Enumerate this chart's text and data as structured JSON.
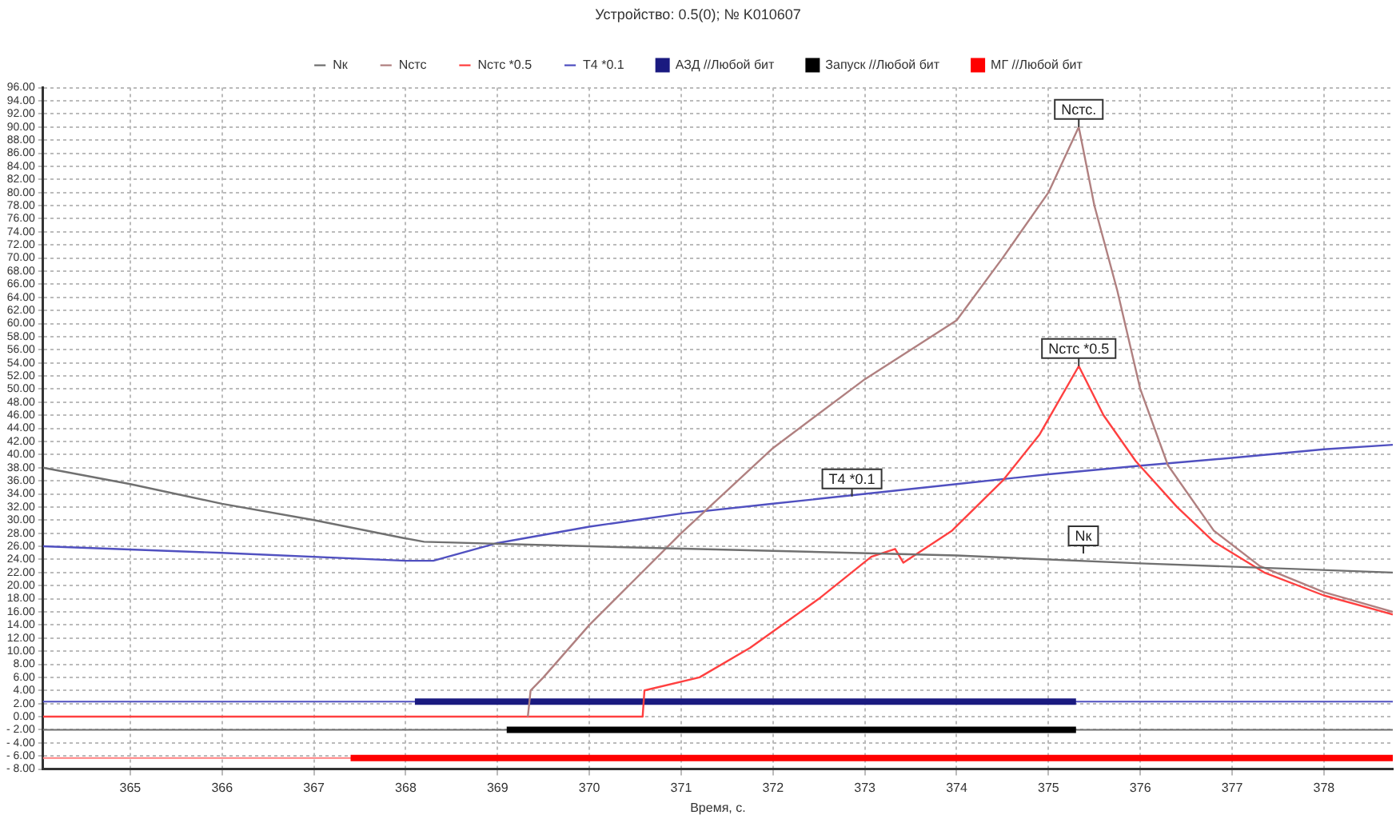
{
  "chart_data": {
    "type": "line",
    "title": "Устройство: 0.5(0); № K010607",
    "xlabel": "Время, с.",
    "xlim": [
      364.05,
      378.75
    ],
    "ylim": [
      -8,
      96
    ],
    "xticks": [
      365,
      366,
      367,
      368,
      369,
      370,
      371,
      372,
      373,
      374,
      375,
      376,
      377,
      378
    ],
    "yticks": [
      {
        "value": -8,
        "label": "- 8.00"
      },
      {
        "value": -6,
        "label": "- 6.00"
      },
      {
        "value": -4,
        "label": "- 4.00"
      },
      {
        "value": -2,
        "label": "- 2.00"
      },
      {
        "value": 0,
        "label": "0.00"
      },
      {
        "value": 2,
        "label": "2.00"
      },
      {
        "value": 4,
        "label": "4.00"
      },
      {
        "value": 6,
        "label": "6.00"
      },
      {
        "value": 8,
        "label": "8.00"
      },
      {
        "value": 10,
        "label": "10.00"
      },
      {
        "value": 12,
        "label": "12.00"
      },
      {
        "value": 14,
        "label": "14.00"
      },
      {
        "value": 16,
        "label": "16.00"
      },
      {
        "value": 18,
        "label": "18.00"
      },
      {
        "value": 20,
        "label": "20.00"
      },
      {
        "value": 22,
        "label": "22.00"
      },
      {
        "value": 24,
        "label": "24.00"
      },
      {
        "value": 26,
        "label": "26.00"
      },
      {
        "value": 28,
        "label": "28.00"
      },
      {
        "value": 30,
        "label": "30.00"
      },
      {
        "value": 32,
        "label": "32.00"
      },
      {
        "value": 34,
        "label": "34.00"
      },
      {
        "value": 36,
        "label": "36.00"
      },
      {
        "value": 38,
        "label": "38.00"
      },
      {
        "value": 40,
        "label": "40.00"
      },
      {
        "value": 42,
        "label": "42.00"
      },
      {
        "value": 44,
        "label": "44.00"
      },
      {
        "value": 46,
        "label": "46.00"
      },
      {
        "value": 48,
        "label": "48.00"
      },
      {
        "value": 50,
        "label": "50.00"
      },
      {
        "value": 52,
        "label": "52.00"
      },
      {
        "value": 54,
        "label": "54.00"
      },
      {
        "value": 56,
        "label": "56.00"
      },
      {
        "value": 58,
        "label": "58.00"
      },
      {
        "value": 60,
        "label": "60.00"
      },
      {
        "value": 62,
        "label": "62.00"
      },
      {
        "value": 64,
        "label": "64.00"
      },
      {
        "value": 66,
        "label": "66.00"
      },
      {
        "value": 68,
        "label": "68.00"
      },
      {
        "value": 70,
        "label": "70.00"
      },
      {
        "value": 72,
        "label": "72.00"
      },
      {
        "value": 74,
        "label": "74.00"
      },
      {
        "value": 76,
        "label": "76.00"
      },
      {
        "value": 78,
        "label": "78.00"
      },
      {
        "value": 80,
        "label": "80.00"
      },
      {
        "value": 82,
        "label": "82.00"
      },
      {
        "value": 84,
        "label": "84.00"
      },
      {
        "value": 86,
        "label": "86.00"
      },
      {
        "value": 88,
        "label": "88.00"
      },
      {
        "value": 90,
        "label": "90.00"
      },
      {
        "value": 92,
        "label": "92.00"
      },
      {
        "value": 94,
        "label": "94.00"
      },
      {
        "value": 96,
        "label": "96.00"
      }
    ],
    "grid": true,
    "legend": "top",
    "marker": "none",
    "line_style": "solid",
    "series": [
      {
        "name": "Nк",
        "color": "#707070",
        "x": [
          364.05,
          365,
          366,
          367,
          368,
          368.2,
          370,
          372,
          374,
          376,
          378.75
        ],
        "values": [
          38,
          35.5,
          32.5,
          30,
          27.2,
          26.7,
          26,
          25.3,
          24.6,
          23.4,
          22
        ]
      },
      {
        "name": "Nстс",
        "color": "#b08080",
        "x": [
          369.33,
          369.36,
          369.5,
          370,
          370.5,
          371,
          371.5,
          372,
          373,
          374,
          374.5,
          375,
          375.33,
          375.5,
          375.75,
          376,
          376.3,
          376.8,
          377.3,
          378,
          378.75
        ],
        "values": [
          0,
          4,
          6,
          14,
          21,
          28,
          34.5,
          41,
          51.5,
          60.5,
          70,
          80,
          90,
          78,
          65,
          50,
          38.4,
          28.4,
          23,
          19,
          16
        ]
      },
      {
        "name": "Nстс *0.5",
        "color": "#ff4040",
        "x": [
          364.05,
          370.58,
          370.6,
          371.2,
          371.75,
          372.5,
          373.07,
          373.33,
          373.42,
          373.95,
          374.5,
          374.9,
          375.33,
          375.6,
          375.95,
          376.4,
          376.8,
          377.35,
          378,
          378.75
        ],
        "values": [
          0,
          0,
          4,
          6,
          10.5,
          18,
          24.4,
          25.6,
          23.5,
          28.4,
          36,
          43,
          53.5,
          46,
          39,
          32,
          26.7,
          22,
          18.5,
          15.6
        ]
      },
      {
        "name": "T4 *0.1",
        "color": "#5050c0",
        "x": [
          364.05,
          366,
          368,
          368.3,
          369,
          370,
          371,
          372,
          373,
          374,
          375,
          376,
          377,
          378,
          378.75
        ],
        "values": [
          26,
          25,
          23.8,
          23.8,
          26.5,
          29,
          31,
          32.5,
          34,
          35.5,
          37,
          38.3,
          39.5,
          40.8,
          41.5
        ]
      },
      {
        "name": "АЗД //Любой бит",
        "type": "step",
        "color": "#1a1a80",
        "x": [
          368.1,
          375.3
        ],
        "values": [
          2.3,
          2.3
        ]
      },
      {
        "name": "Запуск //Любой бит",
        "type": "step",
        "color": "#000000",
        "x": [
          369.1,
          375.3
        ],
        "values": [
          -2,
          -2
        ]
      },
      {
        "name": "МГ //Любой бит",
        "type": "step",
        "color": "#ff0000",
        "x": [
          367.4,
          378.75
        ],
        "values": [
          -6.3,
          -6.3
        ]
      }
    ],
    "ref_lines": [
      {
        "axis": "y",
        "value": 2.3,
        "color": "#5050c0"
      },
      {
        "axis": "y",
        "value": -2,
        "color": "#707070"
      },
      {
        "axis": "y",
        "value": -6.3,
        "color": "#ff8080"
      }
    ],
    "annotations": [
      {
        "text": "Nстс.",
        "x": 375.33,
        "y": 90
      },
      {
        "text": "Nстс *0.5",
        "x": 375.33,
        "y": 53.5
      },
      {
        "text": "T4 *0.1",
        "x": 372.86,
        "y": 33.6
      },
      {
        "text": "Nк",
        "x": 375.38,
        "y": 24.9
      }
    ]
  }
}
